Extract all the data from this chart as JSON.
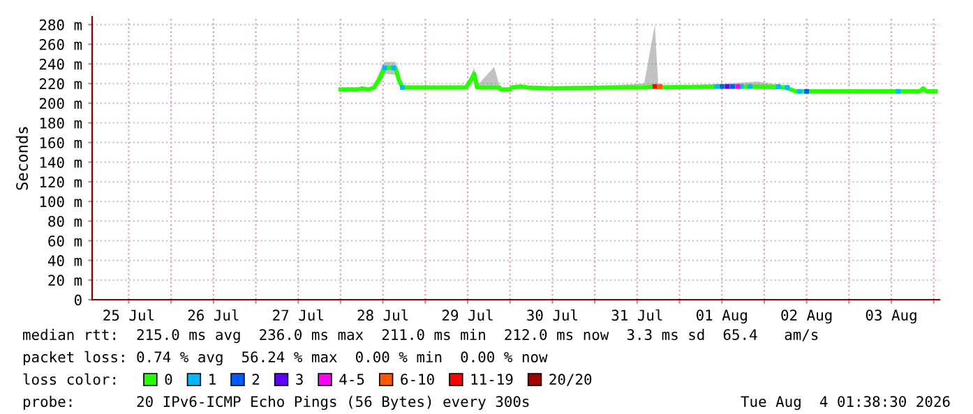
{
  "chart_data": {
    "type": "line",
    "ylabel": "Seconds",
    "legend_title": "loss color:",
    "legend": "bottom",
    "grid": true,
    "marker": "none",
    "line_style": "solid",
    "xlim": [
      "2026-07-25T01:38",
      "2026-08-04T01:38"
    ],
    "xticks": [
      {
        "value": "2026-07-25T12:00",
        "label": "25 Jul"
      },
      {
        "value": "2026-07-26T00:00",
        "label": null
      },
      {
        "value": "2026-07-26T12:00",
        "label": "26 Jul"
      },
      {
        "value": "2026-07-27T00:00",
        "label": null
      },
      {
        "value": "2026-07-27T12:00",
        "label": "27 Jul"
      },
      {
        "value": "2026-07-28T00:00",
        "label": null
      },
      {
        "value": "2026-07-28T12:00",
        "label": "28 Jul"
      },
      {
        "value": "2026-07-29T00:00",
        "label": null
      },
      {
        "value": "2026-07-29T12:00",
        "label": "29 Jul"
      },
      {
        "value": "2026-07-30T00:00",
        "label": null
      },
      {
        "value": "2026-07-30T12:00",
        "label": "30 Jul"
      },
      {
        "value": "2026-07-31T00:00",
        "label": null
      },
      {
        "value": "2026-07-31T12:00",
        "label": "31 Jul"
      },
      {
        "value": "2026-08-01T00:00",
        "label": null
      },
      {
        "value": "2026-08-01T12:00",
        "label": "01 Aug"
      },
      {
        "value": "2026-08-02T00:00",
        "label": null
      },
      {
        "value": "2026-08-02T12:00",
        "label": "02 Aug"
      },
      {
        "value": "2026-08-03T00:00",
        "label": null
      },
      {
        "value": "2026-08-03T12:00",
        "label": "03 Aug"
      },
      {
        "value": "2026-08-04T00:00",
        "label": null
      }
    ],
    "ylim": [
      0,
      288
    ],
    "yticks": [
      0,
      {
        "value": 20,
        "label": "20 m"
      },
      {
        "value": 40,
        "label": "40 m"
      },
      {
        "value": 60,
        "label": "60 m"
      },
      {
        "value": 80,
        "label": "80 m"
      },
      {
        "value": 100,
        "label": "100 m"
      },
      {
        "value": 120,
        "label": "120 m"
      },
      {
        "value": 140,
        "label": "140 m"
      },
      {
        "value": 160,
        "label": "160 m"
      },
      {
        "value": 180,
        "label": "180 m"
      },
      {
        "value": 200,
        "label": "200 m"
      },
      {
        "value": 220,
        "label": "220 m"
      },
      {
        "value": 240,
        "label": "240 m"
      },
      {
        "value": 260,
        "label": "260 m"
      },
      {
        "value": 280,
        "label": "280 m"
      }
    ],
    "series": [
      {
        "name": "0",
        "color": "#26ff00",
        "x": [
          "2026-07-28T00:00",
          "2026-07-28T05:00",
          "2026-07-28T06:00",
          "2026-07-28T08:00",
          "2026-07-28T09:30",
          "2026-07-28T11:30",
          "2026-07-28T12:30",
          "2026-07-28T15:30",
          "2026-07-28T16:30",
          "2026-07-28T17:30",
          "2026-07-29T11:30",
          "2026-07-29T13:00",
          "2026-07-29T13:50",
          "2026-07-29T14:40",
          "2026-07-29T19:30",
          "2026-07-29T21:00",
          "2026-07-29T21:20",
          "2026-07-30T00:00",
          "2026-07-30T00:30",
          "2026-07-30T03:00",
          "2026-07-30T05:00",
          "2026-07-30T12:00",
          "2026-07-31T04:00",
          "2026-07-31T14:00",
          "2026-07-31T17:00",
          "2026-07-31T18:00",
          "2026-08-01T10:00",
          "2026-08-01T22:00",
          "2026-08-02T06:00",
          "2026-08-02T09:00",
          "2026-08-03T20:00",
          "2026-08-03T21:00",
          "2026-08-03T22:00",
          "2026-08-04T00:30"
        ],
        "values": [
          214,
          214,
          215,
          214,
          216,
          228,
          236,
          236,
          224,
          216,
          216,
          224,
          230,
          216,
          216,
          216,
          214,
          214,
          216,
          217,
          216,
          215,
          216,
          216,
          217,
          216,
          217,
          217,
          216,
          212,
          212,
          215,
          212,
          212
        ],
        "lower": [
          213,
          213,
          214,
          213,
          215,
          222,
          230,
          229,
          219,
          215,
          215,
          220,
          224,
          215,
          215,
          215,
          213,
          213,
          215,
          216,
          215,
          214,
          215,
          215,
          215,
          215,
          215,
          215,
          215,
          211,
          211,
          213,
          211,
          211
        ],
        "upper": [
          215,
          215,
          217,
          215,
          218,
          236,
          242,
          242,
          230,
          218,
          218,
          229,
          236,
          218,
          237,
          218,
          215,
          215,
          218,
          219,
          218,
          217,
          218,
          220,
          280,
          218,
          219,
          222,
          218,
          213,
          213,
          217,
          213,
          213
        ]
      },
      {
        "name": "1",
        "color": "#00b8ff",
        "type": "scatter",
        "marker": "square",
        "x": [
          "2026-07-28T12:30",
          "2026-07-28T15:00",
          "2026-07-28T17:30",
          "2026-08-01T10:30",
          "2026-08-01T17:30",
          "2026-08-01T20:00",
          "2026-08-02T04:00",
          "2026-08-02T06:30",
          "2026-08-02T10:00",
          "2026-08-03T14:00"
        ],
        "values": [
          236,
          236,
          216,
          217,
          217,
          217,
          217,
          216,
          212,
          212
        ]
      },
      {
        "name": "2",
        "color": "#0059ff",
        "type": "scatter",
        "marker": "square",
        "x": [
          "2026-08-01T12:00",
          "2026-08-01T15:00",
          "2026-08-02T12:00"
        ],
        "values": [
          217,
          217,
          212
        ]
      },
      {
        "name": "3",
        "color": "#5e00ff",
        "type": "scatter",
        "marker": "square",
        "x": [
          "2026-08-01T13:30"
        ],
        "values": [
          217
        ]
      },
      {
        "name": "4-5",
        "color": "#ff00ff",
        "type": "scatter",
        "marker": "square",
        "x": [
          "2026-08-01T16:30"
        ],
        "values": [
          217
        ]
      },
      {
        "name": "6-10",
        "color": "#ff5500",
        "type": "scatter",
        "marker": "square",
        "x": [
          "2026-07-31T18:30"
        ],
        "values": [
          217
        ]
      },
      {
        "name": "11-19",
        "color": "#ff0000",
        "type": "scatter",
        "marker": "square",
        "x": [
          "2026-07-31T17:00"
        ],
        "values": [
          217
        ]
      },
      {
        "name": "20/20",
        "color": "#a10000",
        "type": "scatter"
      }
    ],
    "annotations": [
      "median rtt:  215.0 ms avg  236.0 ms max  211.0 ms min  212.0 ms now  3.3 ms sd  65.4   am/s",
      "packet loss: 0.74 % avg  56.24 % max  0.00 % min  0.00 % now",
      "probe:       20 IPv6-ICMP Echo Pings (56 Bytes) every 300s",
      "Tue Aug  4 01:38:30 2026"
    ]
  }
}
